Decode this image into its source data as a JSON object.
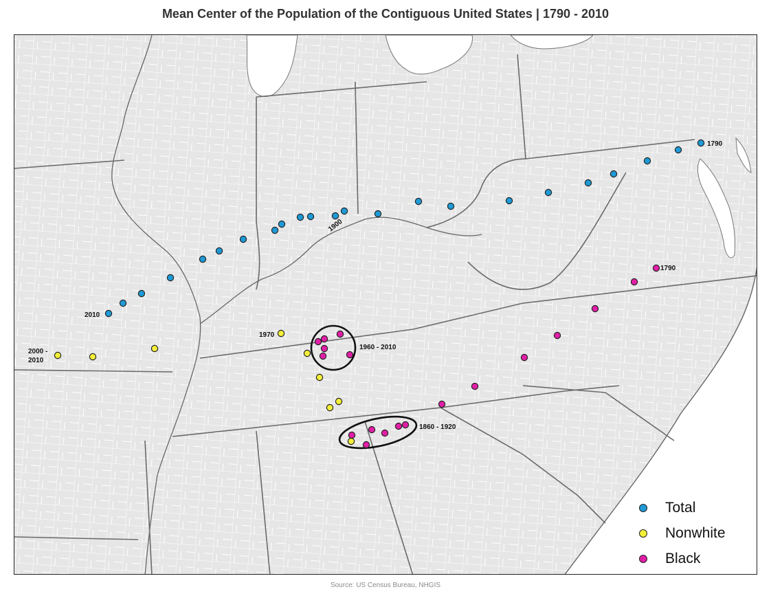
{
  "title": "Mean Center of the Population of the Contiguous United States | 1790 - 2010",
  "source": "Source: US Census Bureau, NHGIS",
  "colors": {
    "land": "#e6e6e6",
    "water": "#ffffff",
    "county_lines": "#ffffff",
    "state_lines": "#6a6a6a",
    "total": "#1f9ad6",
    "nonwhite": "#f3ef3a",
    "black": "#e01fa6"
  },
  "legend": [
    {
      "label": "Total",
      "series": "total"
    },
    {
      "label": "Nonwhite",
      "series": "nonwhite"
    },
    {
      "label": "Black",
      "series": "black"
    }
  ],
  "labels": {
    "total_1790": "1790",
    "total_1900": "1900",
    "total_2010": "2010",
    "nonwhite_1970": "1970",
    "nonwhite_2000_line1": "2000 -",
    "nonwhite_2000_line2": "2010",
    "black_1790": "1790",
    "black_1960": "1960 - 2010",
    "black_1860": "1860 - 1920"
  }
}
